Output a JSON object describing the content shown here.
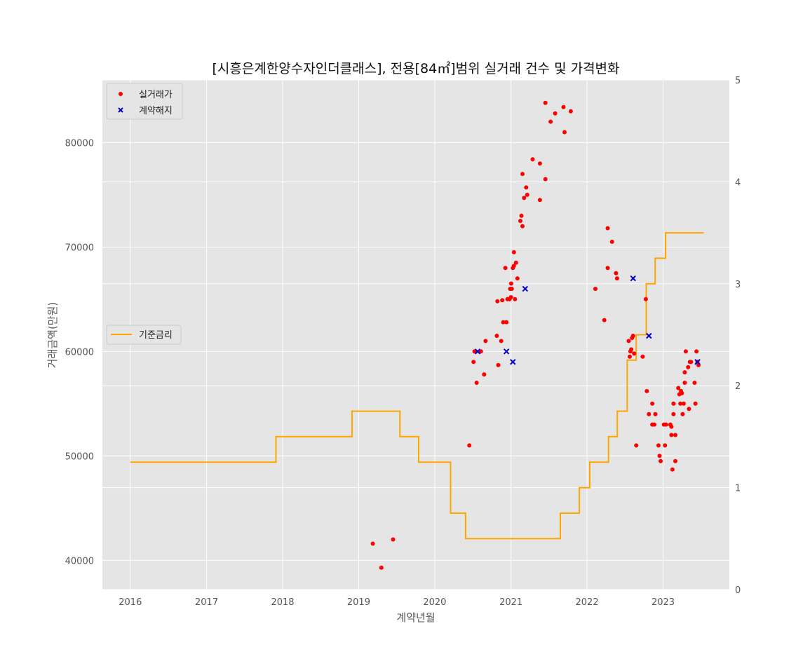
{
  "chart_data": {
    "type": "scatter",
    "title": "[시흥은계한양수자인더클래스], 전용[84㎡]범위 실거래 건수 및 가격변화",
    "xlabel": "계약년월",
    "ylabel": "거래금액(만원)",
    "x_ticks": [
      "2016",
      "2017",
      "2018",
      "2019",
      "2020",
      "2021",
      "2022",
      "2023"
    ],
    "y_ticks": [
      "40000",
      "50000",
      "60000",
      "70000",
      "80000"
    ],
    "y2_ticks": [
      "0",
      "1",
      "2",
      "3",
      "4",
      "5"
    ],
    "xlim": [
      "2015-08-20",
      "2023-11-15"
    ],
    "ylim": [
      37200,
      86000
    ],
    "y2lim": [
      0,
      5
    ],
    "grid": true,
    "colors": {
      "background": "#e5e5e5",
      "grid": "#ffffff",
      "trade": "#ff0000",
      "cancel": "#0000cc",
      "rate": "#ffa500"
    },
    "legend_upper": {
      "placement": "top-left",
      "items": [
        "실거래가",
        "계약해지"
      ]
    },
    "legend_lower": {
      "placement": "center-left",
      "items": [
        "기준금리"
      ]
    },
    "series": [
      {
        "name": "실거래가",
        "kind": "scatter",
        "axis": "left",
        "marker": "circle",
        "points": [
          [
            "2019-03-10",
            41600
          ],
          [
            "2019-04-20",
            39300
          ],
          [
            "2019-06-15",
            42000
          ],
          [
            "2020-06-15",
            51000
          ],
          [
            "2020-07-05",
            59000
          ],
          [
            "2020-07-10",
            60000
          ],
          [
            "2020-07-20",
            57000
          ],
          [
            "2020-08-10",
            60000
          ],
          [
            "2020-08-25",
            57800
          ],
          [
            "2020-09-01",
            61000
          ],
          [
            "2020-10-25",
            61500
          ],
          [
            "2020-10-28",
            64800
          ],
          [
            "2020-11-01",
            58700
          ],
          [
            "2020-11-15",
            61000
          ],
          [
            "2020-11-20",
            64900
          ],
          [
            "2020-11-25",
            62800
          ],
          [
            "2020-12-05",
            68000
          ],
          [
            "2020-12-10",
            62800
          ],
          [
            "2020-12-15",
            65000
          ],
          [
            "2020-12-25",
            65000
          ],
          [
            "2020-12-28",
            66000
          ],
          [
            "2021-01-01",
            65200
          ],
          [
            "2021-01-02",
            66500
          ],
          [
            "2021-01-05",
            66000
          ],
          [
            "2021-01-10",
            68000
          ],
          [
            "2021-01-15",
            69500
          ],
          [
            "2021-01-15",
            68200
          ],
          [
            "2021-01-20",
            65000
          ],
          [
            "2021-01-25",
            68500
          ],
          [
            "2021-02-01",
            67000
          ],
          [
            "2021-02-15",
            72500
          ],
          [
            "2021-02-20",
            73000
          ],
          [
            "2021-02-25",
            72000
          ],
          [
            "2021-02-25",
            77000
          ],
          [
            "2021-03-05",
            74700
          ],
          [
            "2021-03-15",
            75700
          ],
          [
            "2021-03-20",
            75000
          ],
          [
            "2021-04-15",
            78400
          ],
          [
            "2021-05-20",
            74500
          ],
          [
            "2021-05-20",
            78000
          ],
          [
            "2021-06-15",
            76500
          ],
          [
            "2021-06-15",
            83800
          ],
          [
            "2021-07-10",
            82000
          ],
          [
            "2021-08-01",
            82800
          ],
          [
            "2021-09-10",
            83400
          ],
          [
            "2021-09-15",
            81000
          ],
          [
            "2021-10-15",
            83000
          ],
          [
            "2022-02-10",
            66000
          ],
          [
            "2022-03-25",
            63000
          ],
          [
            "2022-04-10",
            71800
          ],
          [
            "2022-04-10",
            68000
          ],
          [
            "2022-05-01",
            70500
          ],
          [
            "2022-05-20",
            67500
          ],
          [
            "2022-05-25",
            67000
          ],
          [
            "2022-07-20",
            61000
          ],
          [
            "2022-07-25",
            59500
          ],
          [
            "2022-07-28",
            60000
          ],
          [
            "2022-08-01",
            60200
          ],
          [
            "2022-08-05",
            61300
          ],
          [
            "2022-08-10",
            61500
          ],
          [
            "2022-08-15",
            59800
          ],
          [
            "2022-08-25",
            51000
          ],
          [
            "2022-09-25",
            59500
          ],
          [
            "2022-10-10",
            65000
          ],
          [
            "2022-10-15",
            56200
          ],
          [
            "2022-10-25",
            54000
          ],
          [
            "2022-11-10",
            55000
          ],
          [
            "2022-11-10",
            53000
          ],
          [
            "2022-11-20",
            53000
          ],
          [
            "2022-11-25",
            54000
          ],
          [
            "2022-12-10",
            51000
          ],
          [
            "2022-12-15",
            50000
          ],
          [
            "2022-12-20",
            49500
          ],
          [
            "2023-01-05",
            53000
          ],
          [
            "2023-01-10",
            51000
          ],
          [
            "2023-01-15",
            53000
          ],
          [
            "2023-02-05",
            53000
          ],
          [
            "2023-02-10",
            52800
          ],
          [
            "2023-02-10",
            52000
          ],
          [
            "2023-02-15",
            48700
          ],
          [
            "2023-02-20",
            55000
          ],
          [
            "2023-02-20",
            54000
          ],
          [
            "2023-03-01",
            52000
          ],
          [
            "2023-03-01",
            49500
          ],
          [
            "2023-03-15",
            56500
          ],
          [
            "2023-03-20",
            55900
          ],
          [
            "2023-03-25",
            55000
          ],
          [
            "2023-03-28",
            56200
          ],
          [
            "2023-04-01",
            56000
          ],
          [
            "2023-04-05",
            54000
          ],
          [
            "2023-04-10",
            55000
          ],
          [
            "2023-04-15",
            57000
          ],
          [
            "2023-04-15",
            58000
          ],
          [
            "2023-04-20",
            60000
          ],
          [
            "2023-05-01",
            58500
          ],
          [
            "2023-05-05",
            54500
          ],
          [
            "2023-05-10",
            59000
          ],
          [
            "2023-05-15",
            59000
          ],
          [
            "2023-06-01",
            57000
          ],
          [
            "2023-06-05",
            55000
          ],
          [
            "2023-06-10",
            60000
          ],
          [
            "2023-06-15",
            59000
          ],
          [
            "2023-06-20",
            58700
          ]
        ]
      },
      {
        "name": "계약해지",
        "kind": "scatter",
        "axis": "left",
        "marker": "x",
        "points": [
          [
            "2020-07-25",
            60000
          ],
          [
            "2020-12-10",
            60000
          ],
          [
            "2021-01-10",
            59000
          ],
          [
            "2021-03-10",
            66000
          ],
          [
            "2022-08-10",
            67000
          ],
          [
            "2022-10-25",
            61500
          ],
          [
            "2023-06-15",
            59000
          ]
        ]
      },
      {
        "name": "기준금리",
        "kind": "step",
        "axis": "right",
        "points": [
          [
            "2016-01-01",
            1.25
          ],
          [
            "2017-11-30",
            1.5
          ],
          [
            "2018-11-30",
            1.75
          ],
          [
            "2019-07-18",
            1.5
          ],
          [
            "2019-10-16",
            1.25
          ],
          [
            "2020-03-17",
            0.75
          ],
          [
            "2020-05-28",
            0.5
          ],
          [
            "2021-08-26",
            0.75
          ],
          [
            "2021-11-25",
            1.0
          ],
          [
            "2022-01-14",
            1.25
          ],
          [
            "2022-04-14",
            1.5
          ],
          [
            "2022-05-26",
            1.75
          ],
          [
            "2022-07-13",
            2.25
          ],
          [
            "2022-08-25",
            2.5
          ],
          [
            "2022-10-12",
            3.0
          ],
          [
            "2022-11-24",
            3.25
          ],
          [
            "2023-01-13",
            3.5
          ],
          [
            "2023-07-15",
            3.5
          ]
        ]
      }
    ]
  }
}
